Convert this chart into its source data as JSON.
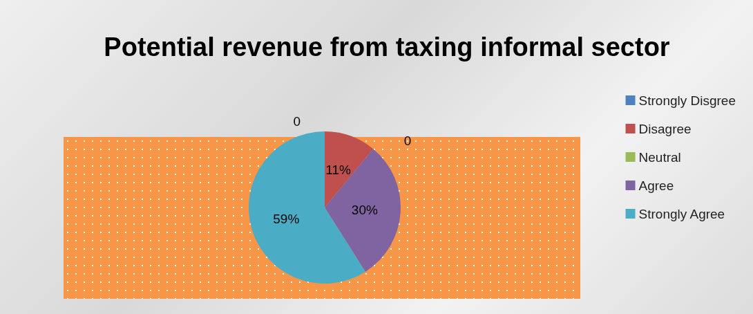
{
  "chart_data": {
    "type": "pie",
    "title": "Potential revenue from taxing informal sector",
    "categories": [
      "Strongly Disgree",
      "Disagree",
      "Neutral",
      "Agree",
      "Strongly Agree"
    ],
    "values": [
      0,
      11,
      0,
      30,
      59
    ],
    "colors": [
      "#4f81bd",
      "#c0504d",
      "#9bbb59",
      "#8064a2",
      "#4bacc6"
    ],
    "value_labels": [
      "0",
      "11%",
      "0",
      "30%",
      "59%"
    ],
    "legend": "right"
  }
}
